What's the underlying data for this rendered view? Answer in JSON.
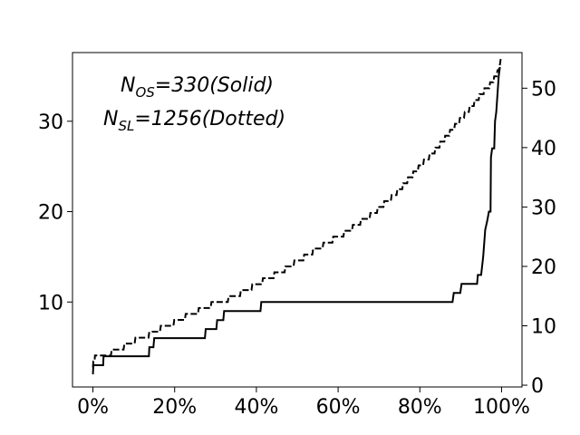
{
  "chart_data": {
    "type": "line",
    "grid": false,
    "x_axis": {
      "range": [
        -5,
        105
      ],
      "ticks": [
        0,
        20,
        40,
        60,
        80,
        100
      ],
      "tick_labels": [
        "0%",
        "20%",
        "40%",
        "60%",
        "80%",
        "100%"
      ]
    },
    "y_axis_left": {
      "range": [
        0.6,
        37.6
      ],
      "ticks": [
        10,
        20,
        30
      ],
      "tick_labels": [
        "10",
        "20",
        "30"
      ]
    },
    "y_axis_right": {
      "range": [
        -0.3,
        56.0
      ],
      "ticks": [
        0,
        10,
        20,
        30,
        40,
        50
      ],
      "tick_labels": [
        "0",
        "10",
        "20",
        "30",
        "40",
        "50"
      ]
    },
    "annotations": [
      {
        "main": "N",
        "sub": "OS",
        "rest": "=330(Solid)"
      },
      {
        "main": "N",
        "sub": "SL",
        "rest": "=1256(Dotted)"
      }
    ],
    "series": [
      {
        "style": "solid",
        "axis": "left",
        "points": [
          [
            0.0,
            2
          ],
          [
            0.1,
            3
          ],
          [
            2.5,
            3
          ],
          [
            2.6,
            4
          ],
          [
            13.7,
            4
          ],
          [
            13.8,
            5
          ],
          [
            14.8,
            5
          ],
          [
            15.0,
            6
          ],
          [
            27.4,
            6
          ],
          [
            27.6,
            7
          ],
          [
            30.2,
            7
          ],
          [
            30.4,
            8
          ],
          [
            31.9,
            8
          ],
          [
            32.1,
            9
          ],
          [
            41.0,
            9
          ],
          [
            41.2,
            10
          ],
          [
            88.0,
            10
          ],
          [
            88.3,
            11
          ],
          [
            89.9,
            11
          ],
          [
            90.2,
            12
          ],
          [
            94.0,
            12
          ],
          [
            94.2,
            13
          ],
          [
            95.0,
            13
          ],
          [
            95.5,
            15
          ],
          [
            96.0,
            18
          ],
          [
            96.5,
            19
          ],
          [
            96.9,
            20
          ],
          [
            97.3,
            20
          ],
          [
            97.4,
            26
          ],
          [
            97.7,
            27
          ],
          [
            98.2,
            27
          ],
          [
            98.4,
            30
          ],
          [
            98.7,
            31
          ],
          [
            99.0,
            33
          ],
          [
            99.3,
            35
          ],
          [
            99.6,
            36
          ]
        ]
      },
      {
        "style": "dashed",
        "axis": "right",
        "points": [
          [
            0,
            3
          ],
          [
            0.1,
            4
          ],
          [
            0.4,
            4
          ],
          [
            0.5,
            5
          ],
          [
            4.4,
            5
          ],
          [
            4.6,
            6
          ],
          [
            7.5,
            6
          ],
          [
            7.7,
            7
          ],
          [
            10.2,
            7
          ],
          [
            10.4,
            8
          ],
          [
            13.6,
            8
          ],
          [
            13.8,
            9
          ],
          [
            16.4,
            9
          ],
          [
            16.6,
            10
          ],
          [
            19.7,
            10
          ],
          [
            19.9,
            11
          ],
          [
            22.5,
            11
          ],
          [
            22.7,
            12
          ],
          [
            25.7,
            12
          ],
          [
            25.9,
            13
          ],
          [
            28.8,
            13
          ],
          [
            29.0,
            14
          ],
          [
            33.0,
            14
          ],
          [
            33.2,
            15
          ],
          [
            36.0,
            15
          ],
          [
            36.2,
            16
          ],
          [
            38.8,
            16
          ],
          [
            39.0,
            17
          ],
          [
            41.4,
            17
          ],
          [
            41.6,
            18
          ],
          [
            44.2,
            18
          ],
          [
            44.4,
            19
          ],
          [
            46.9,
            19
          ],
          [
            47.1,
            20
          ],
          [
            49.1,
            20
          ],
          [
            49.3,
            21
          ],
          [
            51.5,
            21
          ],
          [
            51.7,
            22
          ],
          [
            53.7,
            22
          ],
          [
            53.9,
            23
          ],
          [
            56.2,
            23
          ],
          [
            56.4,
            24
          ],
          [
            58.6,
            24
          ],
          [
            58.8,
            25
          ],
          [
            61.3,
            25
          ],
          [
            61.5,
            26
          ],
          [
            63.4,
            26
          ],
          [
            63.6,
            27
          ],
          [
            65.4,
            27
          ],
          [
            65.6,
            28
          ],
          [
            67.7,
            28
          ],
          [
            67.9,
            29
          ],
          [
            69.5,
            29
          ],
          [
            69.7,
            30
          ],
          [
            71.1,
            30
          ],
          [
            71.3,
            31
          ],
          [
            72.9,
            31
          ],
          [
            73.1,
            32
          ],
          [
            74.3,
            32
          ],
          [
            74.5,
            33
          ],
          [
            75.7,
            33
          ],
          [
            75.9,
            34
          ],
          [
            76.9,
            34
          ],
          [
            77.1,
            35
          ],
          [
            78.2,
            35
          ],
          [
            78.4,
            36
          ],
          [
            79.5,
            36
          ],
          [
            79.7,
            37
          ],
          [
            80.8,
            37
          ],
          [
            81.0,
            38
          ],
          [
            82.2,
            38
          ],
          [
            82.4,
            39
          ],
          [
            83.6,
            39
          ],
          [
            83.8,
            40
          ],
          [
            84.8,
            40
          ],
          [
            85.0,
            41
          ],
          [
            86.0,
            41
          ],
          [
            86.2,
            42
          ],
          [
            87.2,
            42
          ],
          [
            87.4,
            43
          ],
          [
            88.4,
            43
          ],
          [
            88.6,
            44
          ],
          [
            89.6,
            44
          ],
          [
            89.8,
            45
          ],
          [
            90.8,
            45
          ],
          [
            91.0,
            46
          ],
          [
            92.0,
            46
          ],
          [
            92.2,
            47
          ],
          [
            93.2,
            47
          ],
          [
            93.4,
            48
          ],
          [
            94.4,
            48
          ],
          [
            94.6,
            49
          ],
          [
            95.6,
            49
          ],
          [
            95.8,
            50
          ],
          [
            97.0,
            50
          ],
          [
            97.2,
            51
          ],
          [
            98.0,
            51
          ],
          [
            98.2,
            52
          ],
          [
            98.8,
            52
          ],
          [
            99.0,
            53
          ],
          [
            99.3,
            53
          ],
          [
            99.6,
            54
          ],
          [
            99.8,
            55
          ]
        ]
      }
    ]
  }
}
